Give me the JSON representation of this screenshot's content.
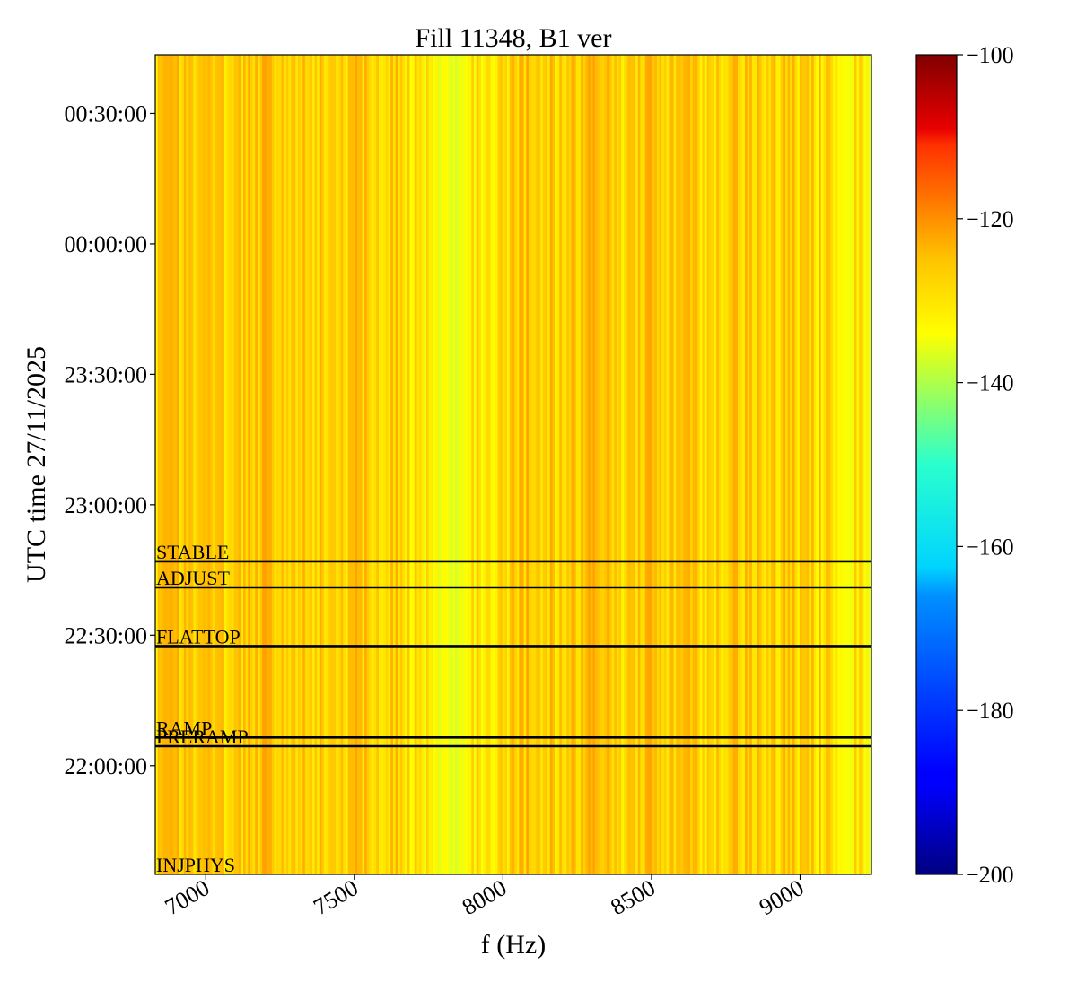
{
  "chart_data": {
    "type": "heatmap",
    "title": "Fill 11348, B1 ver",
    "xlabel": "f (Hz)",
    "ylabel": "UTC time 27/11/2025",
    "xlim": [
      6830,
      9240
    ],
    "ylim": [
      "21:35:00",
      "00:43:30"
    ],
    "x_ticks": [
      7000,
      7500,
      8000,
      8500,
      9000
    ],
    "y_ticks": [
      {
        "label": "22:00:00",
        "minutes": 0
      },
      {
        "label": "22:30:00",
        "minutes": 30
      },
      {
        "label": "23:00:00",
        "minutes": 60
      },
      {
        "label": "23:30:00",
        "minutes": 90
      },
      {
        "label": "00:00:00",
        "minutes": 120
      },
      {
        "label": "00:30:00",
        "minutes": 150
      }
    ],
    "colorbar": {
      "colormap": "jet",
      "range": [
        -200,
        -100
      ],
      "ticks": [
        -100,
        -120,
        -140,
        -160,
        -180,
        -200
      ],
      "tick_labels": [
        "−100",
        "−120",
        "−140",
        "−160",
        "−180",
        "−200"
      ]
    },
    "spectrum_note": "Power is nearly time-invariant; vertical stripes vary between about -145 and -125 across frequency.",
    "spectrum_profile": {
      "freqs": [
        6830,
        7000,
        7100,
        7200,
        7300,
        7400,
        7500,
        7600,
        7700,
        7780,
        7800,
        7850,
        7900,
        8000,
        8100,
        8200,
        8300,
        8400,
        8500,
        8600,
        8700,
        8800,
        8900,
        9000,
        9100,
        9200,
        9240
      ],
      "values": [
        -133,
        -132,
        -133,
        -131,
        -133,
        -133,
        -132,
        -133,
        -134,
        -137,
        -138,
        -140,
        -136,
        -133,
        -132,
        -133,
        -132,
        -133,
        -131,
        -133,
        -134,
        -132,
        -133,
        -133,
        -134,
        -136,
        -138
      ]
    },
    "events": [
      {
        "label": "STABLE",
        "minutes": 47
      },
      {
        "label": "ADJUST",
        "minutes": 41
      },
      {
        "label": "FLATTOP",
        "minutes": 27.5
      },
      {
        "label": "RAMP",
        "minutes": 6.5
      },
      {
        "label": "PRERAMP",
        "minutes": 4.5
      },
      {
        "label": "INJPHYS",
        "minutes": -25
      }
    ]
  }
}
